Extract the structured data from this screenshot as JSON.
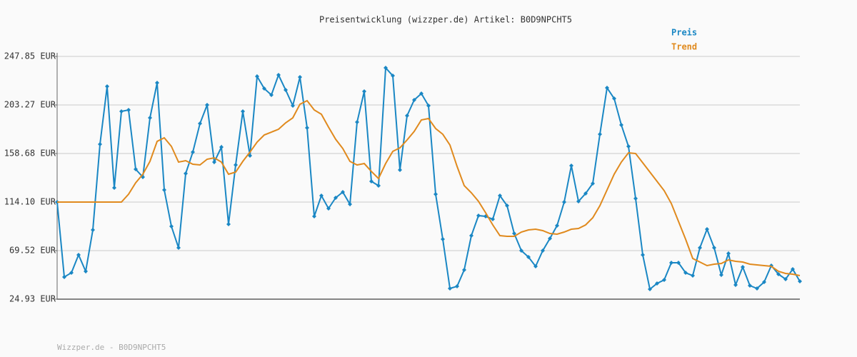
{
  "chart_data": {
    "type": "line",
    "title": "Preisentwicklung (wizzper.de) Artikel: B0D9NPCHT5",
    "footer": "Wizzper.de - B0D9NPCHT5",
    "ylim": [
      24.93,
      247.85
    ],
    "yticks": [
      {
        "value": 24.93,
        "label": "24.93 EUR"
      },
      {
        "value": 69.52,
        "label": "69.52 EUR"
      },
      {
        "value": 114.1,
        "label": "114.10 EUR"
      },
      {
        "value": 158.68,
        "label": "158.68 EUR"
      },
      {
        "value": 203.27,
        "label": "203.27 EUR"
      },
      {
        "value": 247.85,
        "label": "247.85 EUR"
      }
    ],
    "grid": true,
    "legend": "top-right",
    "series": [
      {
        "name": "Preis",
        "color": "#1a87c4",
        "markers": true,
        "values": [
          114.1,
          45.25,
          49.19,
          65.58,
          50.5,
          88.52,
          167.2,
          220.3,
          127.2,
          197.35,
          198.66,
          144.25,
          137.04,
          191.45,
          223.58,
          125.24,
          91.8,
          72.13,
          140.32,
          159.98,
          186.21,
          203.25,
          150.81,
          164.57,
          93.77,
          148.18,
          197.35,
          156.71,
          229.48,
          218.33,
          212.43,
          230.79,
          217.02,
          202.6,
          228.82,
          182.27,
          100.98,
          119.99,
          108.19,
          118.03,
          123.27,
          112.12,
          187.52,
          215.71,
          133.1,
          129.17,
          237.34,
          230.13,
          143.59,
          193.42,
          207.84,
          213.74,
          202.6,
          121.3,
          80.0,
          34.76,
          36.73,
          51.81,
          83.28,
          101.64,
          100.98,
          98.36,
          119.99,
          110.81,
          85.25,
          69.51,
          63.61,
          55.09,
          69.51,
          80.66,
          92.46,
          114.09,
          147.53,
          114.75,
          121.96,
          131.14,
          176.37,
          218.99,
          209.15,
          184.9,
          165.23,
          117.37,
          65.58,
          34.11,
          39.35,
          42.63,
          58.37,
          58.37,
          49.19,
          46.56,
          72.13,
          89.18,
          72.13,
          47.22,
          66.89,
          38.04,
          54.43,
          37.39,
          34.76,
          40.66,
          55.74,
          47.88,
          43.29,
          52.47,
          41.32
        ]
      },
      {
        "name": "Trend",
        "color": "#e08a1e",
        "markers": false,
        "values": [
          114.1,
          114.1,
          114.1,
          114.1,
          114.1,
          114.1,
          114.1,
          114.1,
          114.1,
          114.1,
          121.3,
          131.79,
          139.66,
          151.46,
          169.82,
          173.1,
          165.23,
          150.81,
          152.12,
          148.84,
          148.18,
          153.43,
          154.74,
          150.81,
          139.66,
          141.63,
          151.46,
          159.98,
          169.16,
          175.72,
          178.34,
          180.96,
          186.86,
          191.45,
          203.91,
          207.19,
          198.66,
          194.73,
          182.93,
          171.78,
          163.26,
          151.46,
          148.18,
          149.49,
          142.28,
          135.73,
          149.49,
          160.64,
          163.92,
          171.13,
          179.0,
          189.49,
          190.8,
          181.62,
          176.37,
          166.54,
          146.87,
          129.17,
          122.61,
          114.75,
          104.26,
          93.11,
          83.28,
          82.62,
          82.62,
          86.56,
          88.52,
          89.18,
          87.87,
          85.25,
          84.59,
          86.56,
          89.18,
          89.83,
          93.11,
          99.67,
          110.81,
          125.24,
          139.66,
          150.81,
          159.33,
          158.67,
          150.15,
          141.63,
          133.1,
          124.58,
          112.78,
          96.39,
          80.0,
          62.3,
          59.02,
          55.74,
          57.05,
          57.71,
          60.99,
          59.68,
          59.02,
          57.05,
          56.4,
          55.74,
          55.09,
          50.5,
          48.53,
          47.88,
          46.56
        ]
      }
    ]
  }
}
